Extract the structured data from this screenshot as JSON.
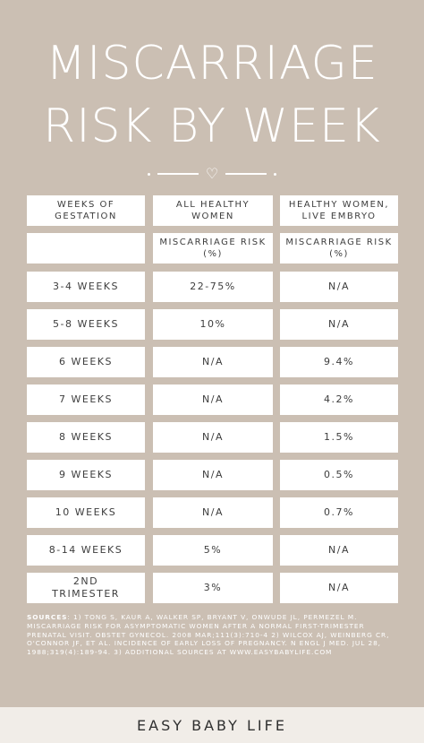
{
  "title": {
    "line1": "MISCARRIAGE",
    "line2": "RISK BY WEEK"
  },
  "colors": {
    "background": "#cbbfb3",
    "cell": "#ffffff",
    "footer": "#f1ede8"
  },
  "table": {
    "headers": [
      "WEEKS OF GESTATION",
      "ALL HEALTHY WOMEN",
      "HEALTHY WOMEN, LIVE EMBRYO"
    ],
    "subheaders": [
      "",
      "MISCARRIAGE RISK (%)",
      "MISCARRIAGE RISK (%)"
    ],
    "rows": [
      [
        "3-4 WEEKS",
        "22-75%",
        "N/A"
      ],
      [
        "5-8 WEEKS",
        "10%",
        "N/A"
      ],
      [
        "6 WEEKS",
        "N/A",
        "9.4%"
      ],
      [
        "7 WEEKS",
        "N/A",
        "4.2%"
      ],
      [
        "8 WEEKS",
        "N/A",
        "1.5%"
      ],
      [
        "9 WEEKS",
        "N/A",
        "0.5%"
      ],
      [
        "10 WEEKS",
        "N/A",
        "0.7%"
      ],
      [
        "8-14 WEEKS",
        "5%",
        "N/A"
      ],
      [
        "2ND TRIMESTER",
        "3%",
        "N/A"
      ]
    ]
  },
  "sources": {
    "label": "SOURCES",
    "text": ": 1) TONG S, KAUR A, WALKER SP, BRYANT V, ONWUDE JL, PERMEZEL M. MISCARRIAGE RISK FOR ASYMPTOMATIC WOMEN AFTER A NORMAL FIRST-TRIMESTER PRENATAL VISIT. OBSTET GYNECOL. 2008 MAR;111(3):710-4 2) WILCOX AJ, WEINBERG CR, O'CONNOR JF, ET AL. INCIDENCE OF EARLY LOSS OF PREGNANCY. N ENGL J MED. JUL 28, 1988;319(4):189-94. 3) ADDITIONAL SOURCES AT WWW.EASYBABYLIFE.COM"
  },
  "footer": {
    "brand": "EASY BABY LIFE"
  }
}
